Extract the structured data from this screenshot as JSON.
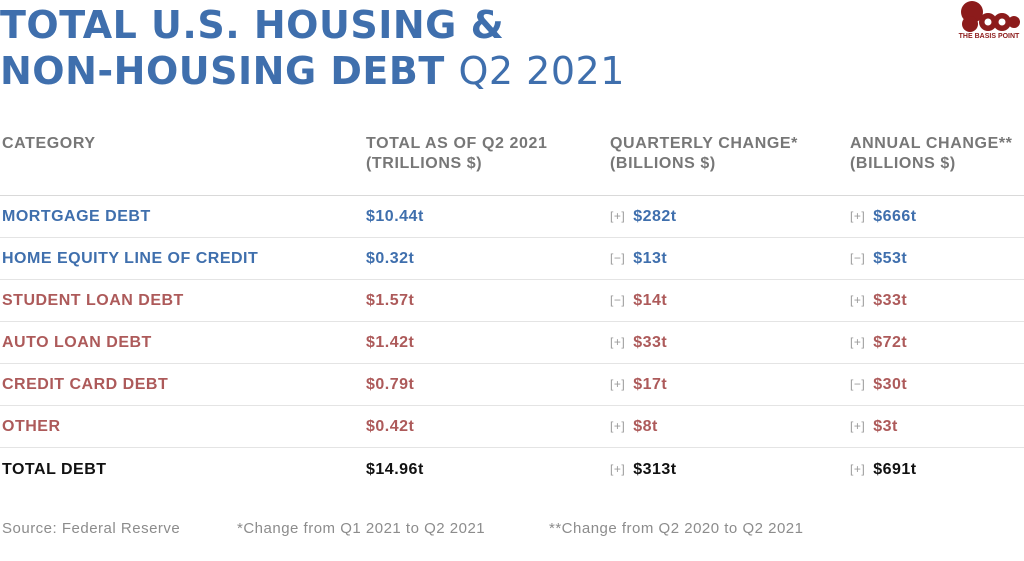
{
  "title": {
    "line1": "TOTAL U.S. HOUSING &",
    "line2_bold": "NON-HOUSING DEBT",
    "line2_light": "Q2 2021"
  },
  "logo": {
    "text": "THE BASIS POINT"
  },
  "colors": {
    "housing": "#3f6fad",
    "non_housing": "#ad5a5a",
    "total": "#111111",
    "header": "#777777",
    "footnote": "#8c8c8c",
    "title": "#3f6fad",
    "logo": "#8c1b1b"
  },
  "chart_data": {
    "type": "table",
    "columns": [
      [
        "CATEGORY",
        ""
      ],
      [
        "TOTAL AS OF Q2 2021",
        "(TRILLIONS $)"
      ],
      [
        "QUARTERLY CHANGE*",
        "(BILLIONS $)"
      ],
      [
        "ANNUAL CHANGE**",
        "(BILLIONS $)"
      ]
    ],
    "rows": [
      {
        "category": "MORTGAGE DEBT",
        "group": "housing",
        "total": "$10.44t",
        "q_sign": "+",
        "q_change": "$282t",
        "a_sign": "+",
        "a_change": "$666t"
      },
      {
        "category": "HOME EQUITY LINE OF CREDIT",
        "group": "housing",
        "total": "$0.32t",
        "q_sign": "−",
        "q_change": "$13t",
        "a_sign": "−",
        "a_change": "$53t"
      },
      {
        "category": "STUDENT LOAN DEBT",
        "group": "non_housing",
        "total": "$1.57t",
        "q_sign": "−",
        "q_change": "$14t",
        "a_sign": "+",
        "a_change": "$33t"
      },
      {
        "category": "AUTO LOAN DEBT",
        "group": "non_housing",
        "total": "$1.42t",
        "q_sign": "+",
        "q_change": "$33t",
        "a_sign": "+",
        "a_change": "$72t"
      },
      {
        "category": "CREDIT CARD DEBT",
        "group": "non_housing",
        "total": "$0.79t",
        "q_sign": "+",
        "q_change": "$17t",
        "a_sign": "−",
        "a_change": "$30t"
      },
      {
        "category": "OTHER",
        "group": "non_housing",
        "total": "$0.42t",
        "q_sign": "+",
        "q_change": "$8t",
        "a_sign": "+",
        "a_change": "$3t"
      }
    ],
    "total_row": {
      "category": "TOTAL DEBT",
      "group": "total",
      "total": "$14.96t",
      "q_sign": "+",
      "q_change": "$313t",
      "a_sign": "+",
      "a_change": "$691t"
    }
  },
  "footnotes": [
    "Source: Federal Reserve",
    "*Change from Q1 2021 to Q2 2021",
    "**Change from Q2 2020 to Q2 2021"
  ]
}
